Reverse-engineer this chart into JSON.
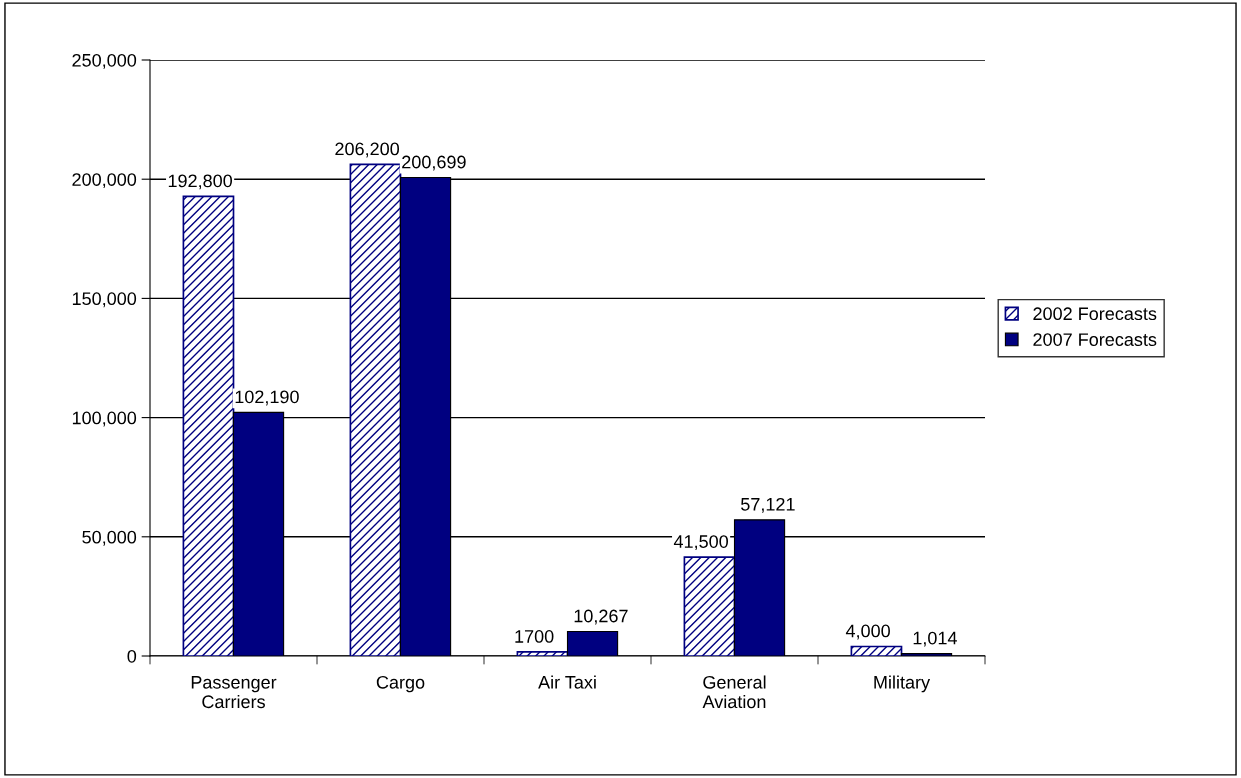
{
  "chart_data": {
    "type": "bar",
    "categories": [
      "Passenger\nCarriers",
      "Cargo",
      "Air Taxi",
      "General\nAviation",
      "Military"
    ],
    "series": [
      {
        "name": "2002 Forecasts",
        "color": "#000080",
        "values": [
          192800,
          206200,
          1700,
          41500,
          4000
        ],
        "value_labels": [
          "192,800",
          "206,200",
          "1700",
          "41,500",
          "4,000"
        ]
      },
      {
        "name": "2007 Forecasts",
        "color": "#000080",
        "values": [
          102190,
          200699,
          10267,
          57121,
          1014
        ],
        "value_labels": [
          "102,190",
          "200,699",
          "10,267",
          "57,121",
          "1,014"
        ]
      }
    ],
    "ylim": [
      0,
      250000
    ],
    "yticks": [
      {
        "value": 0,
        "label": "0"
      },
      {
        "value": 50000,
        "label": "50,000"
      },
      {
        "value": 100000,
        "label": "100,000"
      },
      {
        "value": 150000,
        "label": "150,000"
      },
      {
        "value": 200000,
        "label": "200,000"
      },
      {
        "value": 250000,
        "label": "250,000"
      }
    ],
    "grid": "y",
    "legend": "right"
  }
}
